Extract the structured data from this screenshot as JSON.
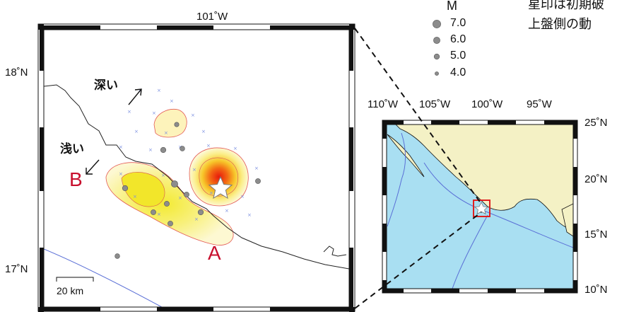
{
  "main_map": {
    "top_lon": "101˚W",
    "lat_18": "18˚N",
    "lat_17": "17˚N",
    "deep_label": "深い",
    "shallow_label": "浅い",
    "label_a": "A",
    "label_b": "B",
    "scale_label": "20 km"
  },
  "legend": {
    "title": "M",
    "items": [
      {
        "label": "7.0",
        "magnitude": 7.0
      },
      {
        "label": "6.0",
        "magnitude": 6.0
      },
      {
        "label": "5.0",
        "magnitude": 5.0
      },
      {
        "label": "4.0",
        "magnitude": 4.0
      }
    ]
  },
  "note": {
    "line1": "星印は初期破",
    "line2": "上盤側の動"
  },
  "inset_map": {
    "lon_labels": [
      "110˚W",
      "105˚W",
      "100˚W",
      "95˚W"
    ],
    "lat_labels": [
      "25˚N",
      "20˚N",
      "15˚N",
      "10˚N"
    ]
  },
  "colors": {
    "sea": "#a9dff2",
    "land": "#f4f1c5",
    "trench": "#5a6fd6",
    "contour": "#d9534f",
    "box": "#e02020"
  }
}
